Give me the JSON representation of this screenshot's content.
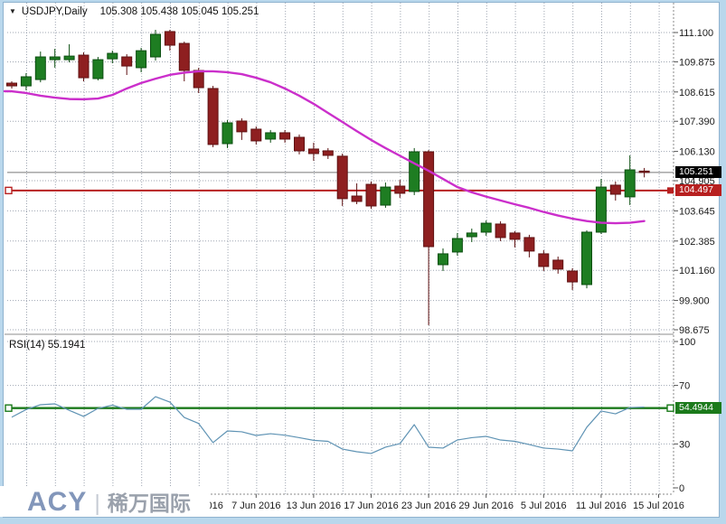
{
  "window": {
    "frame_color": "#b9d7ec"
  },
  "title": {
    "dropdown_icon": "▼",
    "symbol": "USDJPY,Daily",
    "ohlc": "105.308 105.438 105.045 105.251"
  },
  "indicator": {
    "label": "RSI(14) 55.1941"
  },
  "tags": {
    "current_price": "105.251",
    "horizontal_line": "104.497",
    "rsi_signal": "54.4944"
  },
  "logo": {
    "brand": "ACY",
    "separator": "|",
    "cjk": "稀万国际"
  },
  "chart_data": [
    {
      "type": "candlestick",
      "title": "USDJPY,Daily",
      "pane": "price",
      "ohlc_display": {
        "open": "105.308",
        "high": "105.438",
        "low": "105.045",
        "close": "105.251"
      },
      "y_axis": {
        "side": "right",
        "min": 98.675,
        "max": 111.1,
        "labels": [
          "111.100",
          "109.875",
          "108.615",
          "107.390",
          "106.130",
          "104.905",
          "103.645",
          "102.385",
          "101.160",
          "99.900",
          "98.675"
        ]
      },
      "x_ticks": [
        {
          "index": 13,
          "label": "1 Jun 2016"
        },
        {
          "index": 17,
          "label": "7 Jun 2016"
        },
        {
          "index": 21,
          "label": "13 Jun 2016"
        },
        {
          "index": 25,
          "label": "17 Jun 2016"
        },
        {
          "index": 29,
          "label": "23 Jun 2016"
        },
        {
          "index": 33,
          "label": "29 Jun 2016"
        },
        {
          "index": 37,
          "label": "5 Jul 2016"
        },
        {
          "index": 41,
          "label": "11 Jul 2016"
        },
        {
          "index": 45,
          "label": "15 Jul 2016"
        }
      ],
      "candles": [
        {
          "o": 108.985,
          "h": 109.06,
          "l": 108.76,
          "c": 108.87
        },
        {
          "o": 108.87,
          "h": 109.4,
          "l": 108.685,
          "c": 109.25
        },
        {
          "o": 109.135,
          "h": 110.305,
          "l": 109.02,
          "c": 110.08
        },
        {
          "o": 109.965,
          "h": 110.42,
          "l": 109.63,
          "c": 110.08
        },
        {
          "o": 109.965,
          "h": 110.61,
          "l": 109.855,
          "c": 110.115
        },
        {
          "o": 110.155,
          "h": 110.27,
          "l": 109.06,
          "c": 109.21
        },
        {
          "o": 109.175,
          "h": 110.08,
          "l": 109.1,
          "c": 109.965
        },
        {
          "o": 110.0,
          "h": 110.345,
          "l": 109.815,
          "c": 110.23
        },
        {
          "o": 110.08,
          "h": 110.195,
          "l": 109.325,
          "c": 109.7
        },
        {
          "o": 109.63,
          "h": 110.46,
          "l": 109.44,
          "c": 110.34
        },
        {
          "o": 110.08,
          "h": 111.215,
          "l": 109.93,
          "c": 111.025
        },
        {
          "o": 111.14,
          "h": 111.215,
          "l": 110.345,
          "c": 110.57
        },
        {
          "o": 110.645,
          "h": 110.72,
          "l": 109.06,
          "c": 109.515
        },
        {
          "o": 109.515,
          "h": 109.625,
          "l": 108.57,
          "c": 108.795
        },
        {
          "o": 108.76,
          "h": 108.87,
          "l": 106.305,
          "c": 106.42
        },
        {
          "o": 106.455,
          "h": 107.44,
          "l": 106.27,
          "c": 107.325
        },
        {
          "o": 107.4,
          "h": 107.515,
          "l": 106.61,
          "c": 106.95
        },
        {
          "o": 107.06,
          "h": 107.175,
          "l": 106.42,
          "c": 106.57
        },
        {
          "o": 106.645,
          "h": 107.025,
          "l": 106.495,
          "c": 106.91
        },
        {
          "o": 106.91,
          "h": 107.025,
          "l": 106.495,
          "c": 106.645
        },
        {
          "o": 106.72,
          "h": 106.835,
          "l": 106.005,
          "c": 106.155
        },
        {
          "o": 106.23,
          "h": 106.495,
          "l": 105.74,
          "c": 106.04
        },
        {
          "o": 106.155,
          "h": 106.27,
          "l": 105.815,
          "c": 105.965
        },
        {
          "o": 105.93,
          "h": 106.04,
          "l": 103.85,
          "c": 104.155
        },
        {
          "o": 104.265,
          "h": 104.795,
          "l": 103.925,
          "c": 104.04
        },
        {
          "o": 104.755,
          "h": 104.87,
          "l": 103.735,
          "c": 103.85
        },
        {
          "o": 103.885,
          "h": 104.83,
          "l": 103.775,
          "c": 104.64
        },
        {
          "o": 104.68,
          "h": 104.945,
          "l": 104.19,
          "c": 104.38
        },
        {
          "o": 104.455,
          "h": 106.27,
          "l": 104.305,
          "c": 106.115
        },
        {
          "o": 106.115,
          "h": 106.19,
          "l": 98.865,
          "c": 102.15
        },
        {
          "o": 101.395,
          "h": 102.075,
          "l": 101.13,
          "c": 101.85
        },
        {
          "o": 101.925,
          "h": 102.72,
          "l": 101.775,
          "c": 102.49
        },
        {
          "o": 102.565,
          "h": 102.905,
          "l": 102.34,
          "c": 102.72
        },
        {
          "o": 102.755,
          "h": 103.245,
          "l": 102.605,
          "c": 103.13
        },
        {
          "o": 103.095,
          "h": 103.21,
          "l": 102.38,
          "c": 102.53
        },
        {
          "o": 102.72,
          "h": 102.795,
          "l": 102.115,
          "c": 102.455
        },
        {
          "o": 102.53,
          "h": 102.645,
          "l": 101.7,
          "c": 101.965
        },
        {
          "o": 101.85,
          "h": 102.0,
          "l": 101.13,
          "c": 101.32
        },
        {
          "o": 101.585,
          "h": 101.735,
          "l": 101.02,
          "c": 101.21
        },
        {
          "o": 101.13,
          "h": 101.245,
          "l": 100.335,
          "c": 100.675
        },
        {
          "o": 100.565,
          "h": 102.83,
          "l": 100.41,
          "c": 102.755
        },
        {
          "o": 102.755,
          "h": 104.98,
          "l": 102.68,
          "c": 104.64
        },
        {
          "o": 104.72,
          "h": 104.87,
          "l": 104.075,
          "c": 104.34
        },
        {
          "o": 104.23,
          "h": 105.965,
          "l": 103.89,
          "c": 105.36
        },
        {
          "o": 105.308,
          "h": 105.438,
          "l": 105.045,
          "c": 105.251
        }
      ],
      "overlays": {
        "moving_average": {
          "name": "moving-average",
          "color": "#cb2fcb",
          "values": [
            108.645,
            108.57,
            108.46,
            108.38,
            108.32,
            108.31,
            108.34,
            108.49,
            108.76,
            108.99,
            109.17,
            109.33,
            109.42,
            109.48,
            109.48,
            109.44,
            109.36,
            109.21,
            109.02,
            108.76,
            108.46,
            108.12,
            107.74,
            107.36,
            106.98,
            106.61,
            106.27,
            105.95,
            105.63,
            105.32,
            104.98,
            104.64,
            104.42,
            104.24,
            104.08,
            103.92,
            103.77,
            103.6,
            103.45,
            103.32,
            103.22,
            103.15,
            103.13,
            103.15,
            103.22
          ]
        },
        "current_price_line": {
          "value": 105.251,
          "color": "#777777",
          "tag_bg": "#000000"
        },
        "horizontal_line": {
          "value": 104.497,
          "color": "#b72020",
          "tag_bg": "#b72020"
        }
      },
      "colors": {
        "up_fill": "#1e7d22",
        "up_stroke": "#0b4e10",
        "down_fill": "#8e1f20",
        "down_stroke": "#5f1112",
        "grid": "#9fa6b2",
        "axis_text": "#1a1a1a"
      }
    },
    {
      "type": "line",
      "name": "RSI(14)",
      "pane": "indicator",
      "label": "RSI(14) 55.1941",
      "current_value": 55.1941,
      "color": "#5f93b4",
      "y_axis": {
        "side": "right",
        "min": 0,
        "max": 100,
        "labels": [
          "100",
          "70",
          "30",
          "0"
        ]
      },
      "levels": [
        100,
        70,
        30
      ],
      "signal_line": {
        "value": 54.4944,
        "color": "#1b7a1b",
        "tag": "54.4944"
      },
      "values": [
        48.3,
        53.5,
        56.8,
        57.4,
        53.0,
        48.8,
        54.3,
        56.5,
        53.7,
        53.7,
        62.3,
        58.6,
        48.1,
        44.0,
        30.9,
        38.9,
        38.3,
        35.8,
        37.0,
        36.0,
        34.3,
        32.5,
        31.8,
        26.5,
        24.7,
        23.5,
        27.8,
        30.2,
        43.2,
        27.8,
        27.2,
        32.7,
        34.3,
        35.2,
        32.7,
        31.8,
        29.6,
        27.2,
        26.5,
        25.3,
        41.4,
        52.5,
        50.6,
        54.9,
        55.1941
      ]
    }
  ]
}
